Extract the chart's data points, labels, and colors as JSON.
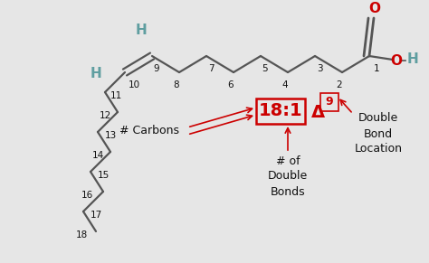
{
  "bg_color": "#e6e6e6",
  "chain_color": "#555555",
  "teal_color": "#5f9ea0",
  "red_color": "#cc0000",
  "black_color": "#111111",
  "orange_color": "#bb3300",
  "bond_lw": 1.6,
  "label_carbons": "# Carbons",
  "label_double_bonds": "# of\nDouble\nBonds",
  "label_double_bond_loc": "Double\nBond\nLocation",
  "notation": "18:1",
  "delta": "Δ",
  "superscript": "9"
}
